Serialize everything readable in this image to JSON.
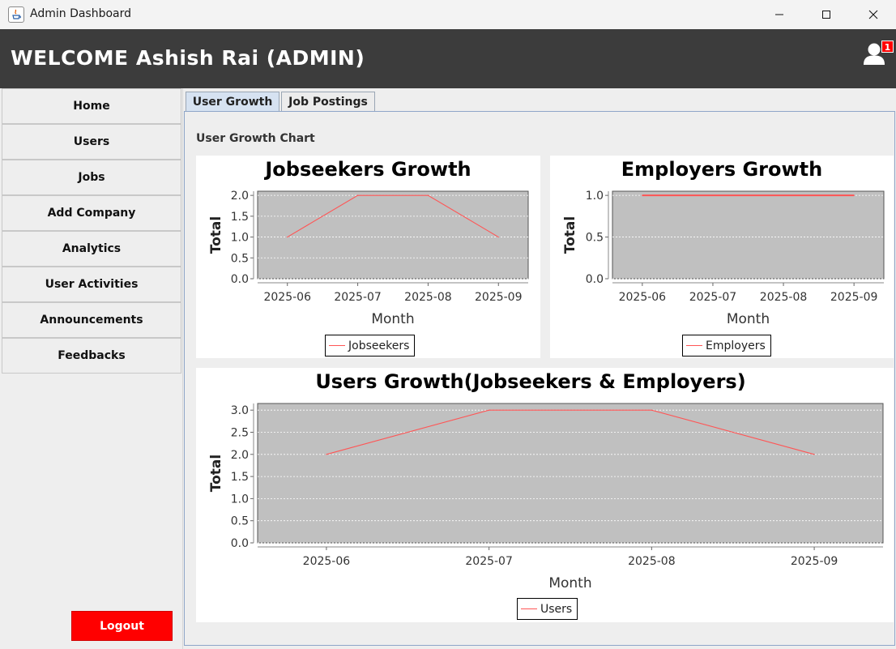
{
  "window": {
    "title": "Admin Dashboard"
  },
  "header": {
    "welcome": "WELCOME Ashish Rai (ADMIN)",
    "notification_count": "1"
  },
  "sidebar": {
    "items": [
      {
        "label": "Home"
      },
      {
        "label": "Users"
      },
      {
        "label": "Jobs"
      },
      {
        "label": "Add Company"
      },
      {
        "label": "Analytics"
      },
      {
        "label": "User Activities"
      },
      {
        "label": "Announcements"
      },
      {
        "label": "Feedbacks"
      }
    ],
    "logout_label": "Logout"
  },
  "tabs": [
    {
      "label": "User Growth",
      "active": true
    },
    {
      "label": "Job Postings",
      "active": false
    }
  ],
  "panel": {
    "title": "User Growth Chart"
  },
  "colors": {
    "series": "#ff5555",
    "plot_bg": "#c0c0c0",
    "header_bg": "#3c3c3c",
    "logout_bg": "#ff0000"
  },
  "chart_data": [
    {
      "type": "line",
      "title": "Jobseekers Growth",
      "xlabel": "Month",
      "ylabel": "Total",
      "categories": [
        "2025-06",
        "2025-07",
        "2025-08",
        "2025-09"
      ],
      "series": [
        {
          "name": "Jobseekers",
          "values": [
            1,
            2,
            2,
            1
          ]
        }
      ],
      "ylim": [
        0,
        2.1
      ],
      "yticks": [
        "0.0",
        "0.5",
        "1.0",
        "1.5",
        "2.0"
      ],
      "grid": true,
      "legend": "bottom"
    },
    {
      "type": "line",
      "title": "Employers Growth",
      "xlabel": "Month",
      "ylabel": "Total",
      "categories": [
        "2025-06",
        "2025-07",
        "2025-08",
        "2025-09"
      ],
      "series": [
        {
          "name": "Employers",
          "values": [
            1,
            1,
            1,
            1
          ]
        }
      ],
      "ylim": [
        0,
        1.05
      ],
      "yticks": [
        "0.0",
        "0.5",
        "1.0"
      ],
      "grid": true,
      "legend": "bottom"
    },
    {
      "type": "line",
      "title": "Users Growth(Jobseekers & Employers)",
      "xlabel": "Month",
      "ylabel": "Total",
      "categories": [
        "2025-06",
        "2025-07",
        "2025-08",
        "2025-09"
      ],
      "series": [
        {
          "name": "Users",
          "values": [
            2,
            3,
            3,
            2
          ]
        }
      ],
      "ylim": [
        0,
        3.15
      ],
      "yticks": [
        "0.0",
        "0.5",
        "1.0",
        "1.5",
        "2.0",
        "2.5",
        "3.0"
      ],
      "grid": true,
      "legend": "bottom"
    }
  ]
}
